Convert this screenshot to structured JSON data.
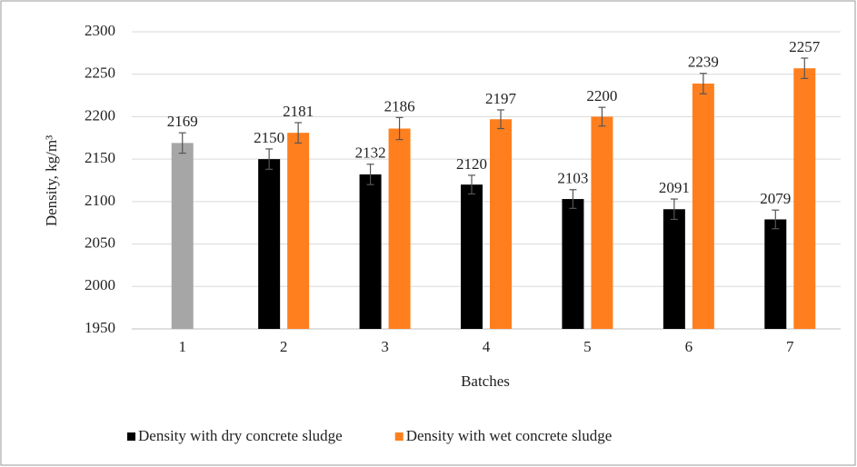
{
  "chart_data": {
    "type": "bar",
    "categories": [
      "1",
      "2",
      "3",
      "4",
      "5",
      "6",
      "7"
    ],
    "series": [
      {
        "color": "#a6a6a6",
        "values": [
          2169,
          null,
          null,
          null,
          null,
          null,
          null
        ],
        "errors": [
          12,
          null,
          null,
          null,
          null,
          null,
          null
        ]
      },
      {
        "name": "Density with dry concrete sludge",
        "color": "#000000",
        "values": [
          null,
          2150,
          2132,
          2120,
          2103,
          2091,
          2079
        ],
        "errors": [
          null,
          12,
          12,
          11,
          11,
          12,
          11
        ]
      },
      {
        "name": "Density with wet concrete sludge",
        "color": "#ff7f1e",
        "values": [
          null,
          2181,
          2186,
          2197,
          2200,
          2239,
          2257
        ],
        "errors": [
          null,
          12,
          13,
          11,
          11,
          12,
          12
        ]
      }
    ],
    "x_label": "Batches",
    "y_label": "Density, kg/m³",
    "ylim": [
      1950,
      2300
    ],
    "yticks": [
      1950,
      2000,
      2050,
      2100,
      2150,
      2200,
      2250,
      2300
    ],
    "grid": true,
    "legend": "bottom"
  }
}
